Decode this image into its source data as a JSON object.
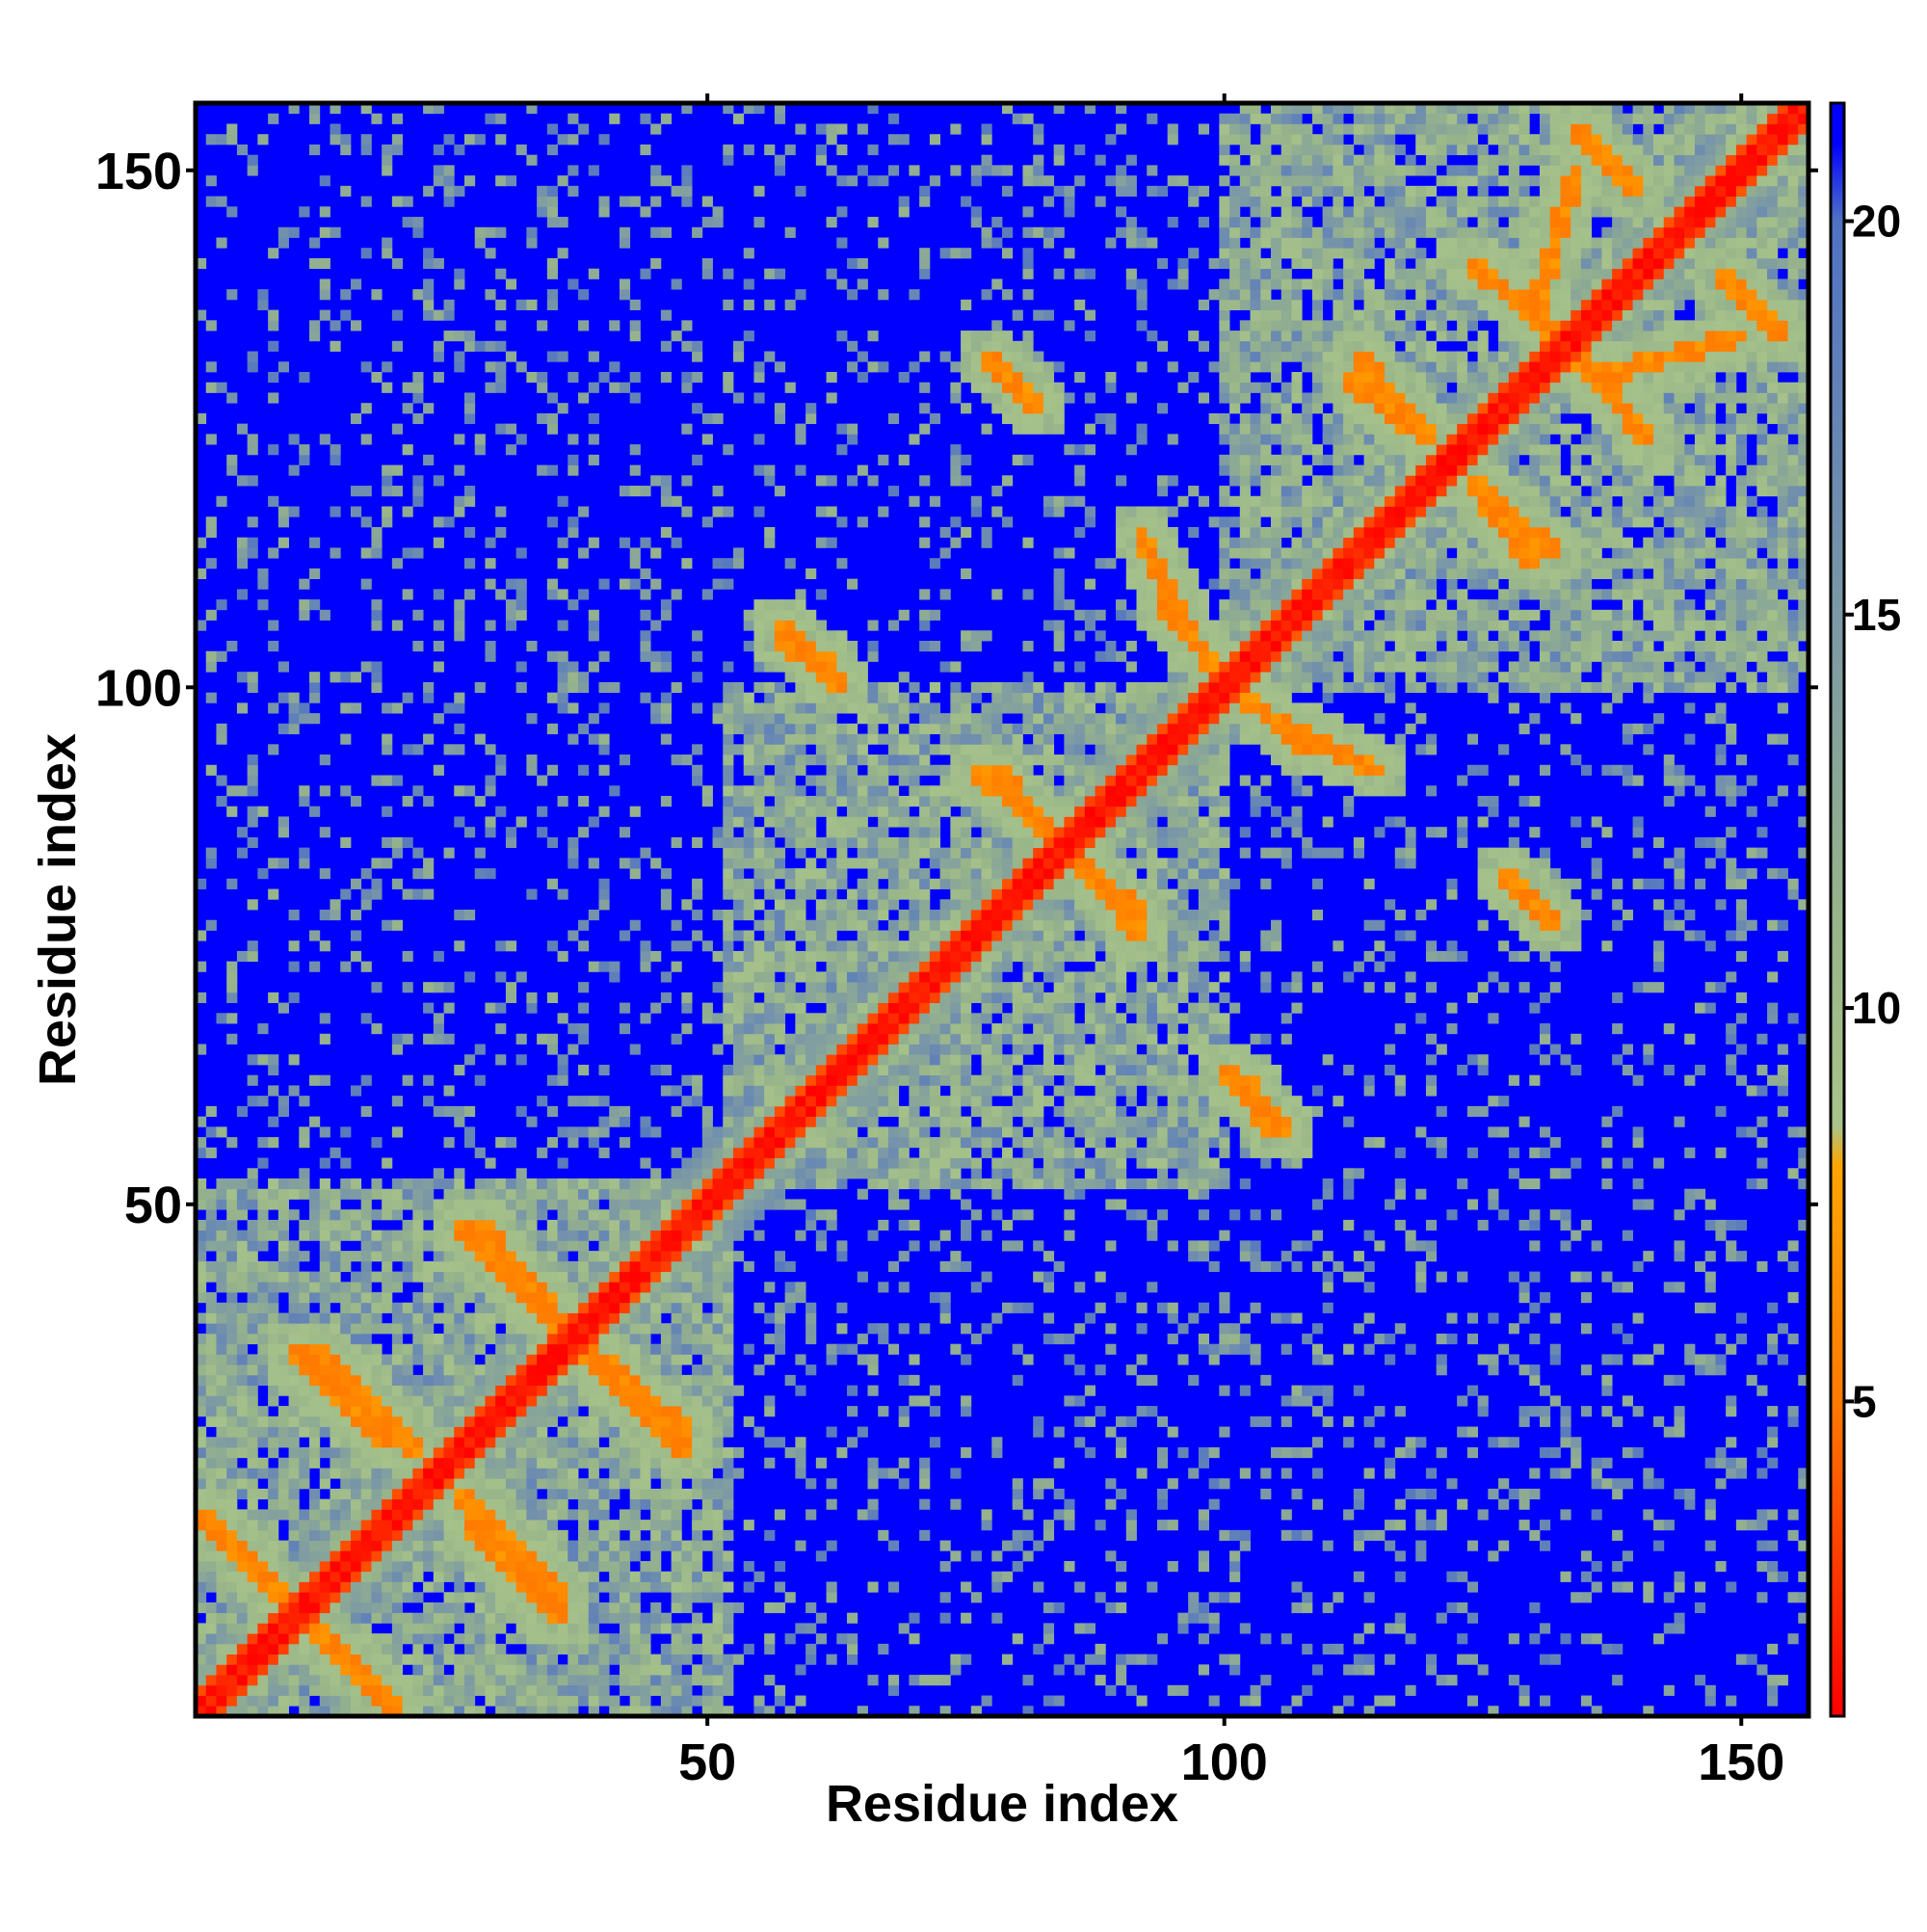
{
  "chart_data": {
    "type": "heatmap",
    "title": "",
    "xlabel": "Residue index",
    "ylabel": "Residue index",
    "n_residues": 156,
    "xlim": [
      1,
      156
    ],
    "ylim": [
      1,
      156
    ],
    "x_ticks": [
      "50",
      "100",
      "150"
    ],
    "y_ticks": [
      "50",
      "100",
      "150"
    ],
    "colorbar": {
      "range": [
        1,
        21.5
      ],
      "ticks": [
        "5",
        "10",
        "15",
        "20"
      ],
      "stops": [
        {
          "value": 1,
          "color": "#ff0000"
        },
        {
          "value": 5,
          "color": "#ff7a00"
        },
        {
          "value": 8,
          "color": "#ffa500"
        },
        {
          "value": 8.5,
          "color": "#a9c48a"
        },
        {
          "value": 11,
          "color": "#98b58a"
        },
        {
          "value": 15,
          "color": "#7b98a6"
        },
        {
          "value": 20,
          "color": "#4f72c4"
        },
        {
          "value": 21,
          "color": "#0000ff"
        }
      ]
    },
    "background_color": "#0000ff",
    "matrix_description_values": {
      "diagonal_band": [
        1,
        4
      ],
      "secondary_contacts": [
        5,
        8
      ],
      "near_contacts": [
        9,
        16
      ],
      "far": 21
    },
    "domains": [
      {
        "start": 1,
        "end": 52
      },
      {
        "start": 52,
        "end": 100
      },
      {
        "start": 100,
        "end": 156
      }
    ],
    "contact_stripes": [
      {
        "start": [
          1,
          20
        ],
        "end": [
          20,
          1
        ]
      },
      {
        "start": [
          12,
          36
        ],
        "end": [
          22,
          26
        ]
      },
      {
        "start": [
          27,
          19
        ],
        "end": [
          36,
          10
        ]
      },
      {
        "start": [
          28,
          48
        ],
        "end": [
          38,
          36
        ]
      },
      {
        "start": [
          38,
          36
        ],
        "end": [
          48,
          26
        ]
      },
      {
        "start": [
          57,
          105
        ],
        "end": [
          63,
          100
        ]
      },
      {
        "start": [
          76,
          92
        ],
        "end": [
          84,
          85
        ]
      },
      {
        "start": [
          84,
          85
        ],
        "end": [
          92,
          78
        ]
      },
      {
        "start": [
          92,
          115
        ],
        "end": [
          97,
          104
        ]
      },
      {
        "start": [
          101,
          100
        ],
        "end": [
          108,
          94
        ]
      },
      {
        "start": [
          102,
          62
        ],
        "end": [
          106,
          57
        ]
      },
      {
        "start": [
          113,
          132
        ],
        "end": [
          120,
          124
        ]
      },
      {
        "start": [
          124,
          141
        ],
        "end": [
          130,
          136
        ]
      },
      {
        "start": [
          130,
          136
        ],
        "end": [
          138,
          128
        ]
      },
      {
        "start": [
          125,
          118
        ],
        "end": [
          130,
          112
        ]
      },
      {
        "start": [
          136,
          130
        ],
        "end": [
          150,
          134
        ]
      },
      {
        "start": [
          134,
          154
        ],
        "end": [
          140,
          148
        ]
      },
      {
        "start": [
          127,
          82
        ],
        "end": [
          132,
          77
        ]
      }
    ]
  }
}
